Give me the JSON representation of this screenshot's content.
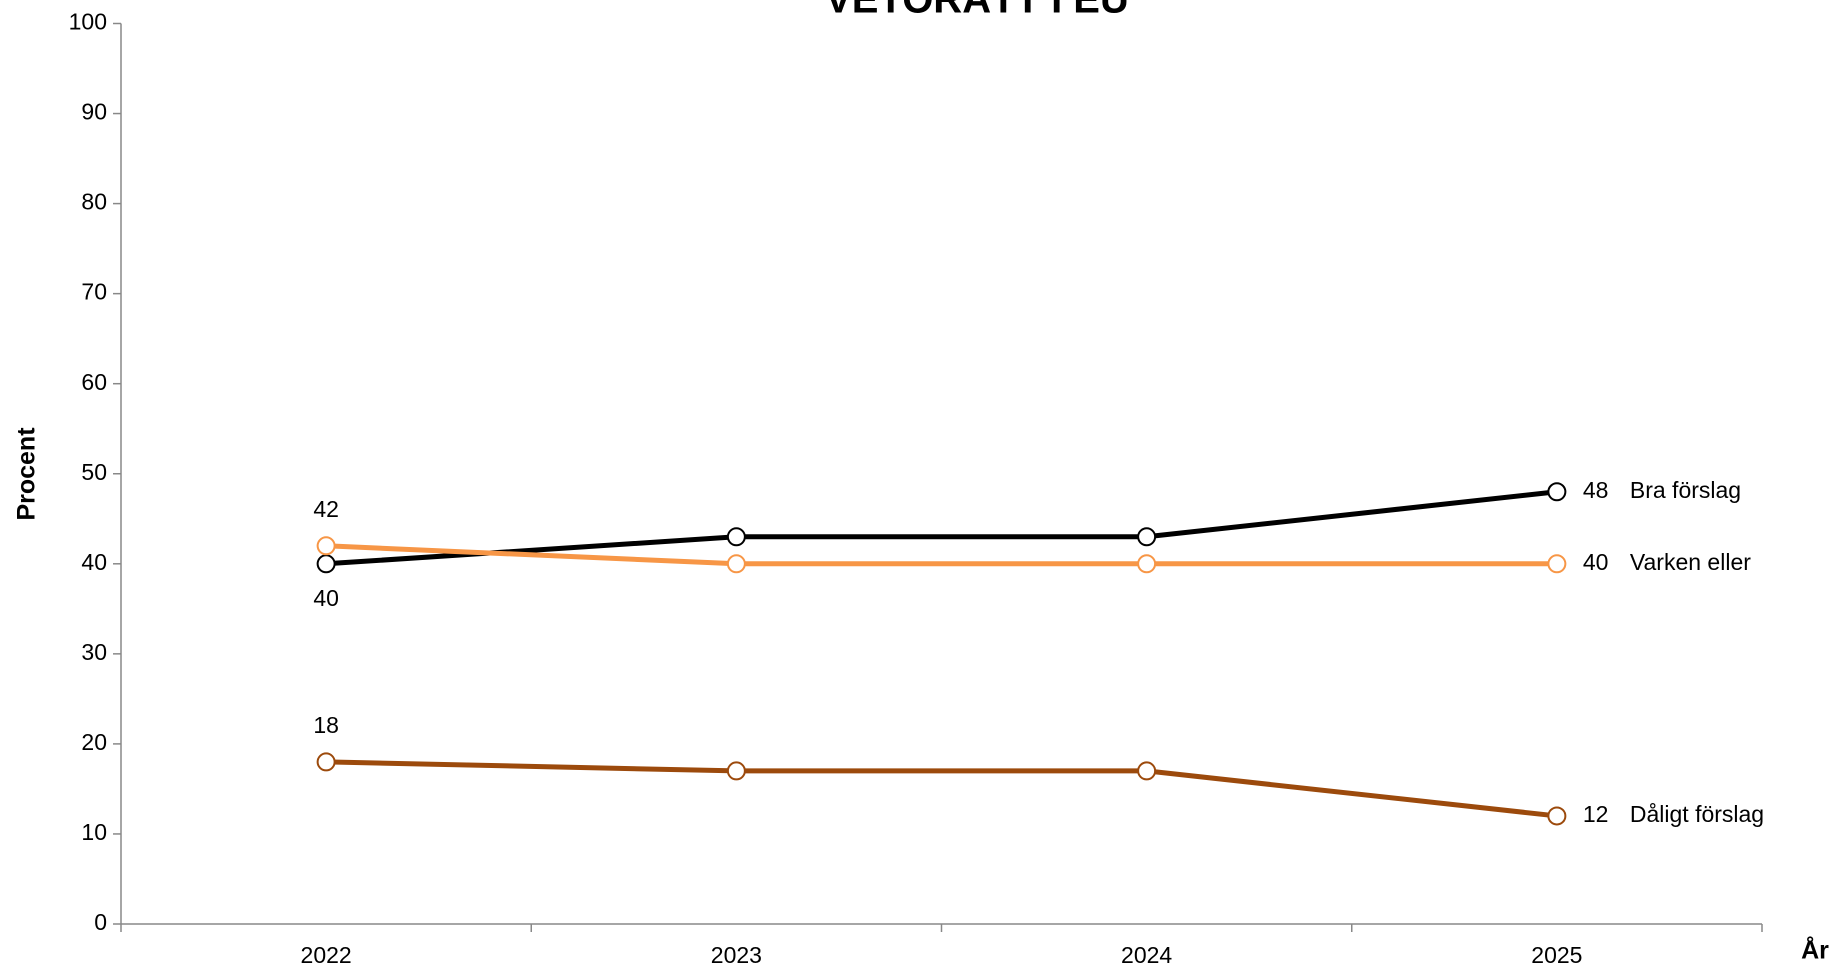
{
  "chart_data": {
    "type": "line",
    "title": "VETORÄTT I EU",
    "x_label": "År",
    "y_label": "Procent",
    "categories": [
      "2022",
      "2023",
      "2024",
      "2025"
    ],
    "series": [
      {
        "name": "Bra förslag",
        "color": "#000000",
        "values": [
          40,
          43,
          43,
          48
        ]
      },
      {
        "name": "Varken eller",
        "color": "#f79646",
        "values": [
          42,
          40,
          40,
          40
        ]
      },
      {
        "name": "Dåligt förslag",
        "color": "#9c4a0c",
        "values": [
          18,
          17,
          17,
          12
        ]
      }
    ],
    "ylim": [
      0,
      100
    ],
    "yticks": [
      0,
      10,
      20,
      30,
      40,
      50,
      60,
      70,
      80,
      90,
      100
    ]
  }
}
